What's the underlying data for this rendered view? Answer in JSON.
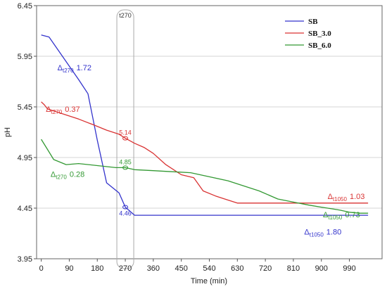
{
  "chart_data": {
    "type": "line",
    "xlabel": "Time (min)",
    "ylabel": "pH",
    "xlim": [
      -15,
      1095
    ],
    "ylim": [
      3.95,
      6.45
    ],
    "x_ticks": [
      "0",
      "90",
      "180",
      "270",
      "360",
      "450",
      "540",
      "630",
      "720",
      "810",
      "900",
      "990"
    ],
    "y_ticks": [
      "3.95",
      "4.45",
      "4.95",
      "5.45",
      "5.95",
      "6.45"
    ],
    "grid": "horizontal",
    "legend_position": "top-right",
    "colors": {
      "SB": "#3333cc",
      "SB_3.0": "#d93333",
      "SB_6.0": "#339933",
      "highlight": "#aaaaaa"
    },
    "series": [
      {
        "name": "SB",
        "x": [
          0,
          25,
          120,
          150,
          180,
          210,
          250,
          270,
          300,
          400,
          500,
          600,
          700,
          800,
          900,
          1050
        ],
        "y": [
          6.16,
          6.14,
          5.72,
          5.58,
          5.12,
          4.7,
          4.6,
          4.46,
          4.38,
          4.38,
          4.38,
          4.38,
          4.38,
          4.38,
          4.38,
          4.38
        ]
      },
      {
        "name": "SB_3.0",
        "x": [
          0,
          10,
          20,
          60,
          120,
          170,
          210,
          250,
          270,
          300,
          330,
          360,
          400,
          450,
          490,
          520,
          560,
          600,
          630,
          720,
          810,
          900,
          1050
        ],
        "y": [
          5.5,
          5.47,
          5.43,
          5.39,
          5.33,
          5.27,
          5.22,
          5.18,
          5.14,
          5.09,
          5.05,
          4.99,
          4.88,
          4.78,
          4.75,
          4.62,
          4.57,
          4.53,
          4.5,
          4.5,
          4.5,
          4.5,
          4.5
        ]
      },
      {
        "name": "SB_6.0",
        "x": [
          0,
          20,
          40,
          80,
          120,
          180,
          240,
          270,
          300,
          360,
          420,
          480,
          540,
          600,
          640,
          700,
          760,
          810,
          860,
          900,
          940,
          960,
          990,
          1020,
          1050
        ],
        "y": [
          5.13,
          5.03,
          4.93,
          4.88,
          4.89,
          4.87,
          4.85,
          4.85,
          4.83,
          4.82,
          4.81,
          4.8,
          4.76,
          4.72,
          4.68,
          4.62,
          4.54,
          4.51,
          4.48,
          4.46,
          4.44,
          4.43,
          4.41,
          4.4,
          4.4
        ]
      }
    ],
    "highlight": {
      "label": "t270",
      "x": 270
    },
    "point_labels": [
      {
        "series": "SB",
        "x": 270,
        "y": 4.46,
        "text": "4.46"
      },
      {
        "series": "SB_3.0",
        "x": 270,
        "y": 5.14,
        "text": "5.14"
      },
      {
        "series": "SB_6.0",
        "x": 270,
        "y": 4.85,
        "text": "4.85"
      }
    ],
    "annotations": [
      {
        "series": "SB",
        "delta": "Δ",
        "sub": "t270",
        "value": "1.72",
        "x": 52,
        "y": 5.81
      },
      {
        "series": "SB_3.0",
        "delta": "Δ",
        "sub": "t270",
        "value": "0.37",
        "x": 15,
        "y": 5.4
      },
      {
        "series": "SB_6.0",
        "delta": "Δ",
        "sub": "t270",
        "value": "0.28",
        "x": 30,
        "y": 4.76
      },
      {
        "series": "SB_3.0",
        "delta": "Δ",
        "sub": "t1050",
        "value": "1.03",
        "x": 920,
        "y": 4.54
      },
      {
        "series": "SB_6.0",
        "delta": "Δ",
        "sub": "t1050",
        "value": "0.73",
        "x": 905,
        "y": 4.36
      },
      {
        "series": "SB",
        "delta": "Δ",
        "sub": "t1050",
        "value": "1.80",
        "x": 845,
        "y": 4.19
      }
    ]
  }
}
